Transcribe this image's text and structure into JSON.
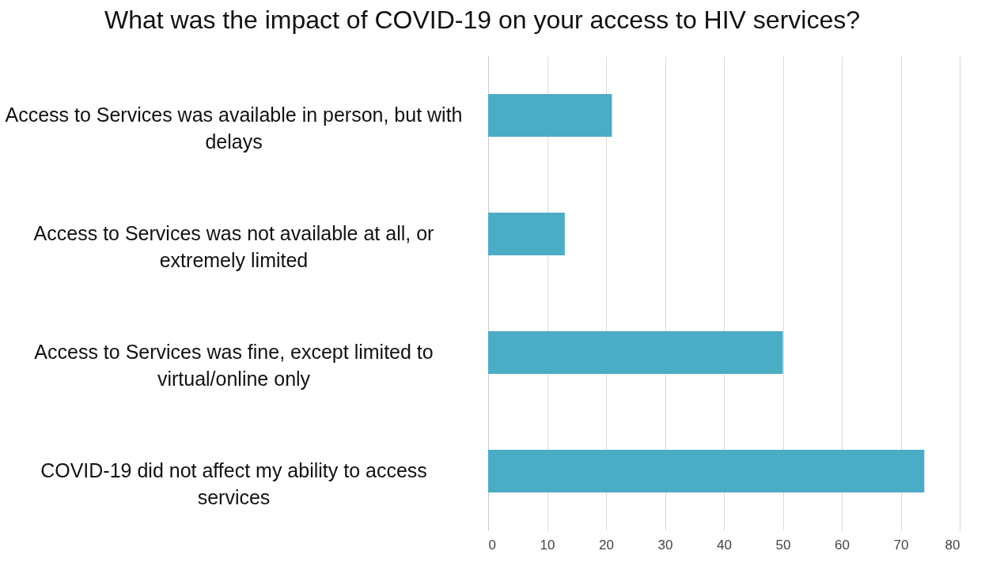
{
  "chart_data": {
    "type": "bar",
    "orientation": "horizontal",
    "title": "What was the impact of COVID-19 on your access to HIV services?",
    "categories": [
      "Access to Services was available in person, but with delays",
      "Access to Services was not available at all, or extremely limited",
      "Access to Services was fine, except limited to virtual/online only",
      "COVID-19 did not affect my ability to access services"
    ],
    "values": [
      21,
      13,
      50,
      74
    ],
    "color": "#4bacc6",
    "xlim": [
      0,
      80
    ],
    "xticks": [
      0,
      10,
      20,
      30,
      40,
      50,
      60,
      70,
      80
    ],
    "grid": "x"
  }
}
